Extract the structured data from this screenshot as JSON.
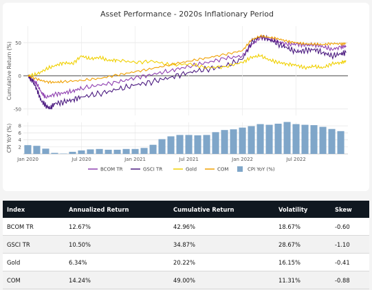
{
  "chart_data": {
    "type": "line",
    "title": "Asset Performance - 2020s Inflationary Period",
    "top_panel": {
      "ylabel": "Cumulative Return (%)",
      "ylim": [
        -60,
        75
      ],
      "yticks": [
        "50",
        "0",
        "-50"
      ],
      "series": [
        {
          "name": "BCOM TR",
          "color": "#8e3fb0",
          "points": [
            [
              0,
              0
            ],
            [
              0.5,
              -6
            ],
            [
              1,
              -12
            ],
            [
              1.5,
              -25
            ],
            [
              2,
              -33
            ],
            [
              3,
              -28
            ],
            [
              4,
              -26
            ],
            [
              5,
              -23
            ],
            [
              6,
              -19
            ],
            [
              8,
              -14
            ],
            [
              10,
              -10
            ],
            [
              12,
              -3
            ],
            [
              14,
              2
            ],
            [
              16,
              8
            ],
            [
              18,
              14
            ],
            [
              20,
              20
            ],
            [
              22,
              26
            ],
            [
              24,
              30
            ],
            [
              25,
              46
            ],
            [
              26,
              58
            ],
            [
              27,
              55
            ],
            [
              28,
              52
            ],
            [
              29,
              47
            ],
            [
              30,
              48
            ],
            [
              31,
              46
            ],
            [
              32,
              47
            ],
            [
              33,
              44
            ],
            [
              34,
              40
            ],
            [
              35,
              43
            ],
            [
              35.6,
              45
            ]
          ]
        },
        {
          "name": "GSCI TR",
          "color": "#4b1a80",
          "points": [
            [
              0,
              0
            ],
            [
              0.5,
              -7
            ],
            [
              1,
              -20
            ],
            [
              1.5,
              -38
            ],
            [
              2,
              -45
            ],
            [
              2.5,
              -50
            ],
            [
              3,
              -42
            ],
            [
              4,
              -40
            ],
            [
              5,
              -36
            ],
            [
              6,
              -32
            ],
            [
              8,
              -27
            ],
            [
              10,
              -21
            ],
            [
              12,
              -14
            ],
            [
              14,
              -9
            ],
            [
              16,
              -2
            ],
            [
              18,
              5
            ],
            [
              20,
              10
            ],
            [
              22,
              14
            ],
            [
              24,
              25
            ],
            [
              25,
              50
            ],
            [
              26,
              60
            ],
            [
              27,
              55
            ],
            [
              28,
              48
            ],
            [
              29,
              42
            ],
            [
              30,
              36
            ],
            [
              31,
              38
            ],
            [
              32,
              40
            ],
            [
              33,
              35
            ],
            [
              34,
              30
            ],
            [
              35,
              33
            ],
            [
              35.6,
              35
            ]
          ]
        },
        {
          "name": "Gold",
          "color": "#f0d000",
          "points": [
            [
              0,
              0
            ],
            [
              1,
              2
            ],
            [
              2,
              10
            ],
            [
              3,
              15
            ],
            [
              4,
              20
            ],
            [
              5,
              18
            ],
            [
              6,
              30
            ],
            [
              7,
              25
            ],
            [
              8,
              28
            ],
            [
              9,
              23
            ],
            [
              10,
              24
            ],
            [
              12,
              20
            ],
            [
              14,
              22
            ],
            [
              16,
              16
            ],
            [
              18,
              18
            ],
            [
              20,
              12
            ],
            [
              22,
              14
            ],
            [
              24,
              20
            ],
            [
              25,
              28
            ],
            [
              26,
              30
            ],
            [
              27,
              24
            ],
            [
              28,
              20
            ],
            [
              29,
              18
            ],
            [
              30,
              16
            ],
            [
              31,
              12
            ],
            [
              32,
              14
            ],
            [
              33,
              12
            ],
            [
              34,
              18
            ],
            [
              35,
              20
            ],
            [
              35.6,
              22
            ]
          ]
        },
        {
          "name": "COM",
          "color": "#f0a000",
          "points": [
            [
              0,
              0
            ],
            [
              1,
              -5
            ],
            [
              2,
              -9
            ],
            [
              3,
              -10
            ],
            [
              4,
              -9
            ],
            [
              6,
              -7
            ],
            [
              8,
              -4
            ],
            [
              10,
              1
            ],
            [
              12,
              6
            ],
            [
              14,
              11
            ],
            [
              16,
              17
            ],
            [
              18,
              22
            ],
            [
              20,
              27
            ],
            [
              22,
              32
            ],
            [
              24,
              38
            ],
            [
              25,
              54
            ],
            [
              26,
              60
            ],
            [
              27,
              58
            ],
            [
              28,
              56
            ],
            [
              29,
              52
            ],
            [
              30,
              50
            ],
            [
              31,
              48
            ],
            [
              32,
              48
            ],
            [
              33,
              47
            ],
            [
              34,
              49
            ],
            [
              35,
              48
            ],
            [
              35.6,
              49
            ]
          ]
        }
      ]
    },
    "bottom_panel": {
      "ylabel": "CPI YoY (%)",
      "ylim": [
        0,
        9
      ],
      "yticks": [
        "8",
        "6",
        "4",
        "2"
      ],
      "series_name": "CPI YoY (%)",
      "color": "#7fa6c9",
      "values": [
        2.5,
        2.3,
        1.5,
        0.3,
        0.1,
        0.6,
        1.0,
        1.3,
        1.4,
        1.2,
        1.2,
        1.4,
        1.4,
        1.7,
        2.6,
        4.2,
        5.0,
        5.4,
        5.4,
        5.3,
        5.4,
        6.2,
        6.8,
        7.0,
        7.5,
        7.9,
        8.5,
        8.3,
        8.6,
        9.1,
        8.5,
        8.3,
        8.2,
        7.7,
        7.1,
        6.5
      ]
    },
    "x_ticks": [
      {
        "label": "Jan 2020",
        "x": 0
      },
      {
        "label": "Jul 2020",
        "x": 6
      },
      {
        "label": "Jan 2021",
        "x": 12
      },
      {
        "label": "Jul 2021",
        "x": 18
      },
      {
        "label": "Jan 2022",
        "x": 24
      },
      {
        "label": "Jul 2022",
        "x": 30
      }
    ],
    "xlim": [
      -0.5,
      35.8
    ],
    "grid": true,
    "legend_placement": "bottom-center",
    "legend": [
      "BCOM TR",
      "GSCI TR",
      "Gold",
      "COM",
      "CPI YoY (%)"
    ]
  },
  "table": {
    "headers": [
      "Index",
      "Annualized Return",
      "Cumulative Return",
      "Volatility",
      "Skew"
    ],
    "rows": [
      [
        "BCOM TR",
        "12.67%",
        "42.96%",
        "18.67%",
        "-0.60"
      ],
      [
        "GSCI TR",
        "10.50%",
        "34.87%",
        "28.67%",
        "-1.10"
      ],
      [
        "Gold",
        "6.34%",
        "20.22%",
        "16.15%",
        "-0.41"
      ],
      [
        "COM",
        "14.24%",
        "49.00%",
        "11.31%",
        "-0.88"
      ]
    ]
  }
}
